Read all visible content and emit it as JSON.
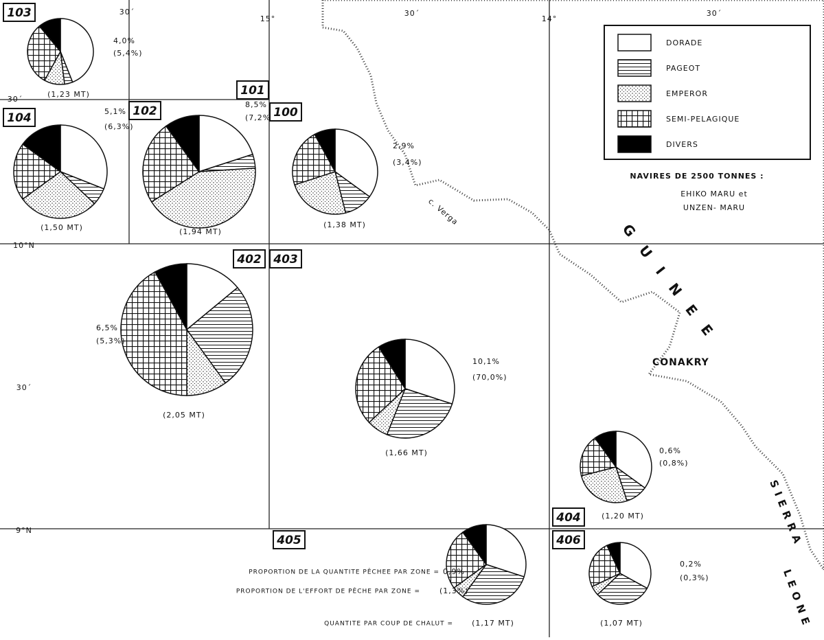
{
  "legend": {
    "items": [
      "DORADE",
      "PAGEOT",
      "EMPEROR",
      "SEMI-PELAGIQUE",
      "DIVERS"
    ],
    "title": "NAVIRES DE 2500 TONNES :",
    "vessels": [
      "EHIKO MARU et",
      "UNZEN- MARU"
    ]
  },
  "coordinates": {
    "lon": [
      "30´",
      "15°",
      "30´",
      "14°",
      "30´"
    ],
    "lat": [
      "30´",
      "10°N",
      "30´",
      "9°N"
    ]
  },
  "places": {
    "cape": "c. Verga",
    "city": "CONAKRY",
    "country": "G U I N E E",
    "country2": "S I E R R A",
    "country3": "L E O N E"
  },
  "notes": {
    "catch_share_text": "PROPORTION DE LA QUANTITE PÊCHEE PAR ZONE =",
    "effort_share_text": "PROPORTION DE L'EFFORT DE PÊCHE PAR ZONE =",
    "per_haul_text": "QUANTITE PAR COUP DE CHALUT ="
  },
  "zones": [
    {
      "label": "103",
      "share": "4,0%",
      "effort": "(5,4%)",
      "catch": "(1,23 MT)",
      "values": [
        44,
        4,
        10,
        31,
        11
      ]
    },
    {
      "label": "104",
      "share": "5,1%",
      "effort": "(6,3%)",
      "catch": "(1,50 MT)",
      "values": [
        31,
        6,
        28,
        20,
        15
      ]
    },
    {
      "label": "102",
      "share": "8,5%",
      "effort": "(7,2%)",
      "catch": "(1,94 MT)",
      "values": [
        20,
        4,
        42,
        24,
        10
      ]
    },
    {
      "label": "101"
    },
    {
      "label": "100",
      "share": "2,9%",
      "effort": "(3,4%)",
      "catch": "(1,38 MT)",
      "values": [
        35,
        11,
        24,
        22,
        8
      ]
    },
    {
      "label": "402",
      "share": "6,5%",
      "effort": "(5,3%)",
      "catch": "(2,05 MT)",
      "values": [
        14,
        26,
        10,
        42,
        8
      ]
    },
    {
      "label": "403",
      "share": "10,1%",
      "effort": "(70,0%)",
      "catch": "(1,66 MT)",
      "values": [
        30,
        26,
        7,
        28,
        9
      ]
    },
    {
      "label": "404",
      "share": "0,6%",
      "effort": "(0,8%)",
      "catch": "(1,20 MT)",
      "values": [
        35,
        10,
        26,
        19,
        10
      ]
    },
    {
      "label": "405",
      "share": "0,9%",
      "effort": "(1,3%)",
      "catch": "(1,17 MT)",
      "values": [
        30,
        30,
        5,
        25,
        10
      ]
    },
    {
      "label": "406",
      "share": "0,2%",
      "effort": "(0,3%)",
      "catch": "(1,07 MT)",
      "values": [
        33,
        30,
        5,
        25,
        7
      ]
    }
  ]
}
